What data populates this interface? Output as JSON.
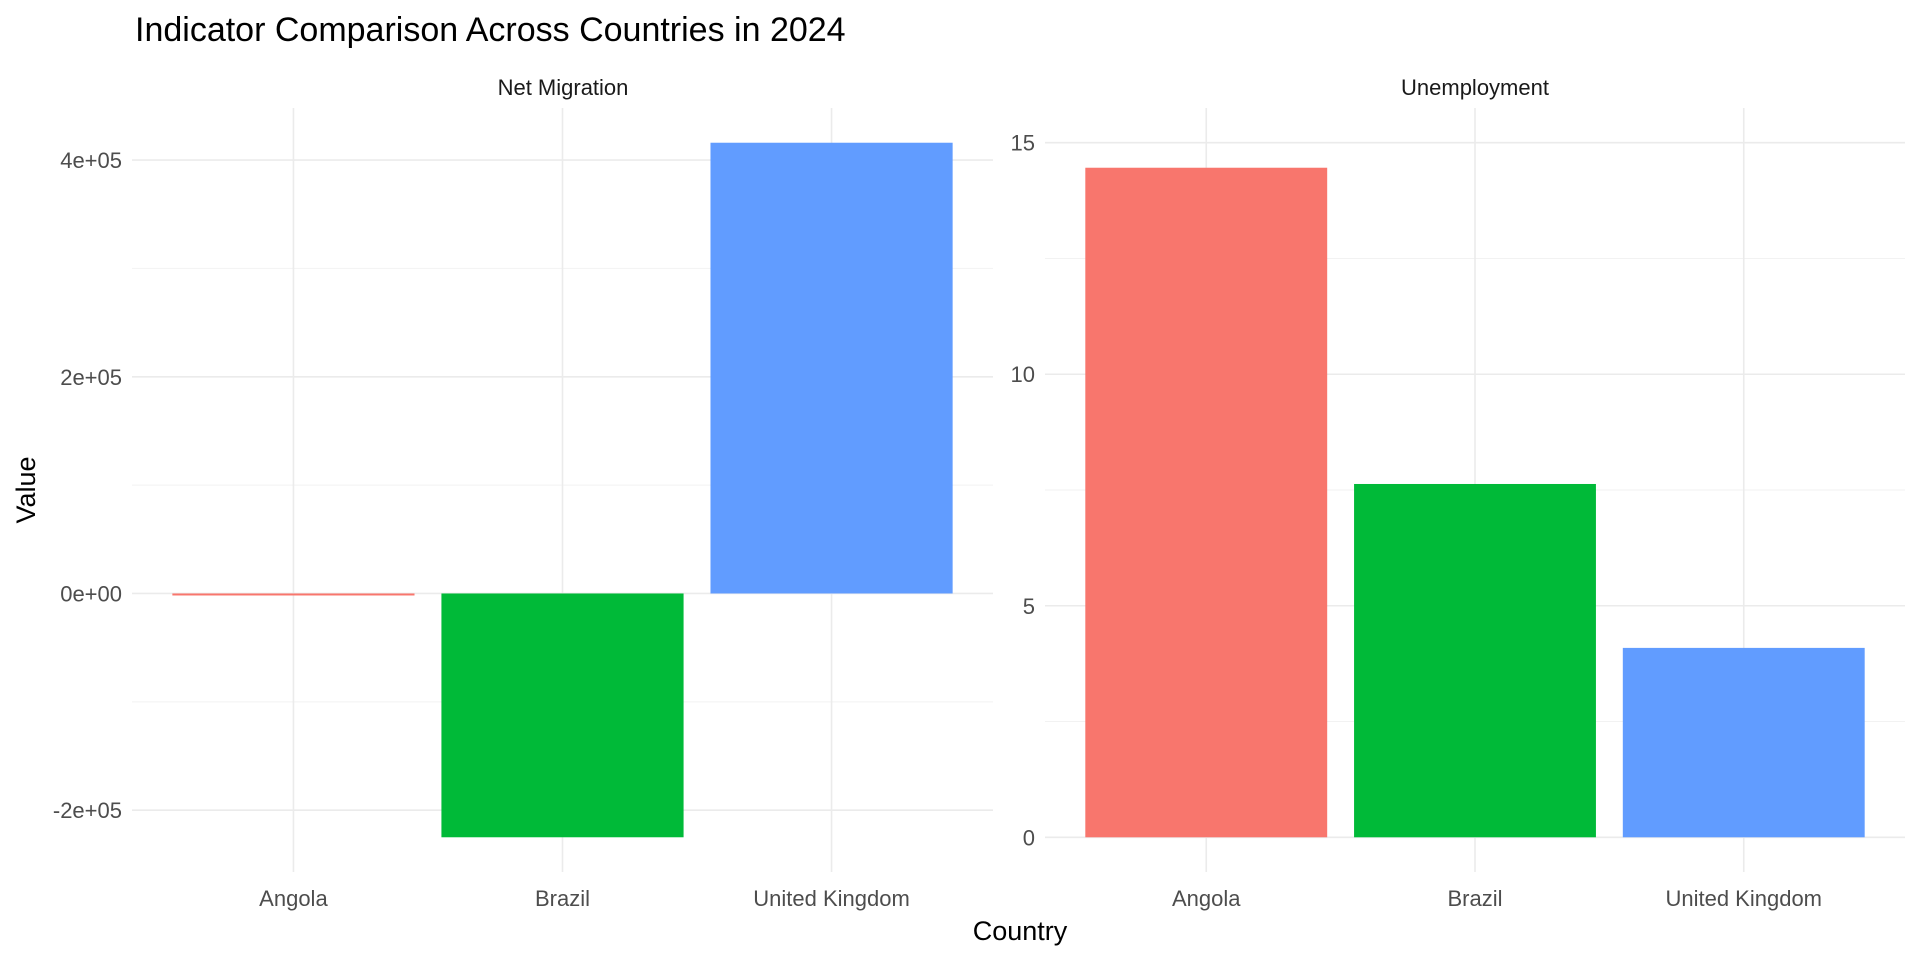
{
  "chart_data": {
    "type": "bar",
    "title": "Indicator Comparison Across Countries in 2024",
    "xlabel": "Country",
    "ylabel": "Value",
    "categories": [
      "Angola",
      "Brazil",
      "United Kingdom"
    ],
    "colors": {
      "Angola": "#F8766D",
      "Brazil": "#00BA38",
      "United Kingdom": "#619CFF"
    },
    "grid": true,
    "legend": "none",
    "facets": [
      {
        "name": "Net Migration",
        "values": [
          -1500,
          -225000,
          416000
        ],
        "ylim": [
          -225000,
          416000
        ],
        "y_ticks": [
          -200000,
          0,
          200000,
          400000
        ],
        "y_tick_labels": [
          "-2e+05",
          "0e+00",
          "2e+05",
          "4e+05"
        ]
      },
      {
        "name": "Unemployment",
        "values": [
          14.46,
          7.63,
          4.09
        ],
        "ylim": [
          0,
          15
        ],
        "y_ticks": [
          0,
          5,
          10,
          15
        ],
        "y_tick_labels": [
          "0",
          "5",
          "10",
          "15"
        ]
      }
    ]
  }
}
